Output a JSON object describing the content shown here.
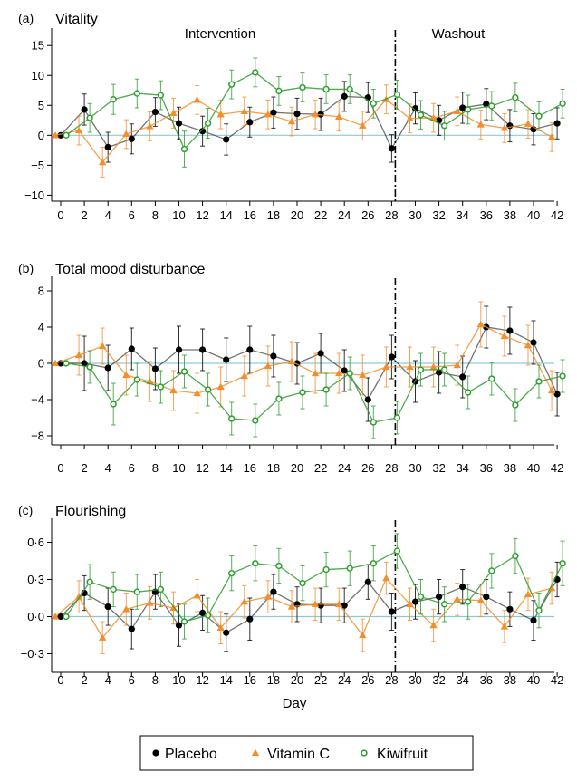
{
  "colors": {
    "placebo": "#000000",
    "vitamin_c": "#F28E2B",
    "kiwifruit": "#2E9E2E",
    "zero_line": "#8EC9D9",
    "divider": "#000000"
  },
  "x_axis": {
    "label": "Day",
    "ticks": [
      0,
      2,
      4,
      6,
      8,
      10,
      12,
      14,
      16,
      18,
      20,
      22,
      24,
      26,
      28,
      30,
      32,
      34,
      36,
      38,
      40,
      42
    ]
  },
  "legend": {
    "placement": "bottom",
    "items": [
      {
        "key": "placebo",
        "label": "Placebo",
        "marker": "filled-circle"
      },
      {
        "key": "vitamin_c",
        "label": "Vitamin C",
        "marker": "filled-triangle"
      },
      {
        "key": "kiwifruit",
        "label": "Kiwifruit",
        "marker": "hollow-circle"
      }
    ]
  },
  "chart_data": [
    {
      "type": "line",
      "panel": "(a)",
      "title": "Vitality",
      "phase_labels": [
        "Intervention",
        "Washout"
      ],
      "ylim": [
        -11,
        17
      ],
      "yticks": [
        -10,
        -5,
        0,
        5,
        10,
        15
      ],
      "ytick_labels": [
        "−10",
        "−5",
        "0",
        "5",
        "10",
        "15"
      ],
      "divider_day": 28,
      "series": [
        {
          "name": "Placebo",
          "key": "placebo",
          "x": [
            0,
            2,
            4,
            6,
            8,
            10,
            12,
            14,
            16,
            18,
            20,
            22,
            24,
            26,
            28,
            30,
            32,
            34,
            36,
            38,
            40,
            42
          ],
          "y": [
            0,
            4.3,
            -2,
            -0.6,
            3.9,
            2,
            0.7,
            -0.7,
            2.2,
            3.8,
            3.6,
            3.5,
            6.5,
            6.3,
            -2.2,
            4.5,
            2.5,
            4.6,
            5.2,
            1.6,
            1,
            2
          ],
          "err": [
            0,
            2.6,
            2.5,
            2.5,
            2.4,
            2.7,
            2.5,
            2.6,
            2.5,
            2.6,
            2.6,
            2.7,
            2.5,
            2.5,
            2.3,
            2.6,
            2.5,
            2.6,
            2.6,
            2.7,
            2.6,
            2.6
          ]
        },
        {
          "name": "Vitamin C",
          "key": "vitamin_c",
          "x": [
            0,
            2,
            4,
            6,
            8,
            10,
            12,
            14,
            16,
            18,
            20,
            22,
            24,
            26,
            28,
            30,
            32,
            34,
            36,
            38,
            40,
            42
          ],
          "y": [
            0,
            0.8,
            -4.5,
            0.2,
            1.5,
            3.7,
            5.9,
            3.5,
            4,
            3.5,
            2.3,
            3.5,
            3.1,
            1.6,
            6,
            2.8,
            2.9,
            4,
            1.8,
            1.2,
            1.9,
            -0.3
          ],
          "err": [
            0,
            2.4,
            2.5,
            2.4,
            2.4,
            2.5,
            2.4,
            2.4,
            2.4,
            2.4,
            2.4,
            2.4,
            2.4,
            2.4,
            2.4,
            2.4,
            2.4,
            2.4,
            2.4,
            2.4,
            2.4,
            2.4
          ]
        },
        {
          "name": "Kiwifruit",
          "key": "kiwifruit",
          "x": [
            0,
            2,
            4,
            6,
            8,
            10,
            12,
            14,
            16,
            18,
            20,
            22,
            24,
            26,
            28,
            30,
            32,
            34,
            36,
            38,
            40,
            42
          ],
          "y": [
            0,
            2.9,
            6,
            7,
            6.7,
            -2.3,
            2,
            8.5,
            10.5,
            7.4,
            8,
            7.7,
            7.7,
            5.3,
            6.8,
            3.4,
            1.6,
            4.3,
            4.9,
            6.3,
            3.2,
            5.3
          ],
          "err": [
            0,
            2.4,
            2.5,
            2.4,
            2.4,
            3,
            2.5,
            2.4,
            2.4,
            2.4,
            2.4,
            2.4,
            2.4,
            2.4,
            2.4,
            2.4,
            2.4,
            2.4,
            2.4,
            2.4,
            2.4,
            2.4
          ]
        }
      ]
    },
    {
      "type": "line",
      "panel": "(b)",
      "title": "Total mood disturbance",
      "ylim": [
        -9,
        9
      ],
      "yticks": [
        -8,
        -4,
        0,
        4,
        8
      ],
      "ytick_labels": [
        "−8",
        "−4",
        "0",
        "4",
        "8"
      ],
      "divider_day": 28,
      "series": [
        {
          "name": "Placebo",
          "key": "placebo",
          "x": [
            0,
            2,
            4,
            6,
            8,
            10,
            12,
            14,
            16,
            18,
            20,
            22,
            24,
            26,
            28,
            30,
            32,
            34,
            36,
            38,
            40,
            42
          ],
          "y": [
            0,
            0,
            -0.5,
            1.6,
            -0.6,
            1.5,
            1.5,
            0.4,
            1.5,
            0.8,
            0,
            1.1,
            -0.8,
            -4,
            0.7,
            -2,
            -1,
            -1.5,
            4,
            3.6,
            2.3,
            -3.4
          ],
          "err": [
            0,
            3,
            2.5,
            2.3,
            2.3,
            2.6,
            2.3,
            2.4,
            2.6,
            2.3,
            2.3,
            2.2,
            2.3,
            2.4,
            2.4,
            2.3,
            2.3,
            2.3,
            2.3,
            2.6,
            2.4,
            2.4
          ]
        },
        {
          "name": "Vitamin C",
          "key": "vitamin_c",
          "x": [
            0,
            2,
            4,
            6,
            8,
            10,
            12,
            14,
            16,
            18,
            20,
            22,
            24,
            26,
            28,
            30,
            32,
            34,
            36,
            38,
            40,
            42
          ],
          "y": [
            0,
            0.9,
            1.9,
            -1.3,
            -2,
            -3,
            -3.3,
            -2.6,
            -1.4,
            -0.3,
            0.2,
            -1.1,
            -1.1,
            -1.3,
            -0.4,
            -0.4,
            -0.4,
            -0.2,
            4.3,
            3,
            2,
            -3
          ],
          "err": [
            0,
            2.2,
            2,
            2.2,
            2.2,
            2.2,
            2.2,
            2.2,
            2.2,
            2.2,
            2.2,
            2.2,
            2.2,
            2.2,
            2.2,
            2.2,
            2.2,
            2.2,
            2.5,
            2.2,
            2.2,
            2.2
          ]
        },
        {
          "name": "Kiwifruit",
          "key": "kiwifruit",
          "x": [
            0,
            2,
            4,
            6,
            8,
            10,
            12,
            14,
            16,
            18,
            20,
            22,
            24,
            26,
            28,
            30,
            32,
            34,
            36,
            38,
            40,
            42
          ],
          "y": [
            0,
            -0.4,
            -4.5,
            -1.8,
            -2.6,
            -0.9,
            -2.9,
            -6.1,
            -6.3,
            -3.9,
            -3.2,
            -2.9,
            -1.1,
            -6.5,
            -6,
            -0.7,
            -0.7,
            -3.2,
            -1.7,
            -4.6,
            -2,
            -1.4
          ],
          "err": [
            0,
            1.8,
            2.3,
            1.8,
            1.8,
            1.8,
            1.8,
            1.8,
            1.8,
            1.8,
            1.8,
            1.8,
            1.8,
            1.8,
            1.8,
            1.8,
            1.8,
            1.8,
            1.8,
            1.8,
            1.8,
            1.8
          ]
        }
      ]
    },
    {
      "type": "line",
      "panel": "(c)",
      "title": "Flourishing",
      "ylim": [
        -0.45,
        0.75
      ],
      "yticks": [
        -0.3,
        0,
        0.3,
        0.6
      ],
      "ytick_labels": [
        "−0·3",
        "0·0",
        "0·3",
        "0·6"
      ],
      "divider_day": 28,
      "series": [
        {
          "name": "Placebo",
          "key": "placebo",
          "x": [
            0,
            2,
            4,
            6,
            8,
            10,
            12,
            14,
            16,
            18,
            20,
            22,
            24,
            26,
            28,
            30,
            32,
            34,
            36,
            38,
            40,
            42
          ],
          "y": [
            0,
            0.19,
            0.08,
            -0.1,
            0.2,
            -0.07,
            0.03,
            -0.13,
            -0.02,
            0.2,
            0.1,
            0.09,
            0.09,
            0.28,
            0.04,
            0.12,
            0.16,
            0.24,
            0.16,
            0.06,
            -0.03,
            0.3
          ],
          "err": [
            0,
            0.14,
            0.15,
            0.16,
            0.14,
            0.17,
            0.14,
            0.15,
            0.17,
            0.14,
            0.14,
            0.14,
            0.14,
            0.14,
            0.15,
            0.14,
            0.14,
            0.14,
            0.14,
            0.14,
            0.16,
            0.14
          ]
        },
        {
          "name": "Vitamin C",
          "key": "vitamin_c",
          "x": [
            0,
            2,
            4,
            6,
            8,
            10,
            12,
            14,
            16,
            18,
            20,
            22,
            24,
            26,
            28,
            30,
            32,
            34,
            36,
            38,
            40,
            42
          ],
          "y": [
            0,
            0.16,
            -0.17,
            0.06,
            0.11,
            0.07,
            0.17,
            -0.09,
            0.12,
            0.16,
            0.08,
            0.1,
            0.1,
            -0.15,
            0.31,
            0.1,
            -0.07,
            0.14,
            0.13,
            -0.08,
            0.18,
            0.23
          ],
          "err": [
            0,
            0.13,
            0.13,
            0.13,
            0.13,
            0.13,
            0.13,
            0.13,
            0.13,
            0.13,
            0.13,
            0.13,
            0.13,
            0.13,
            0.13,
            0.13,
            0.13,
            0.13,
            0.13,
            0.13,
            0.13,
            0.13
          ]
        },
        {
          "name": "Kiwifruit",
          "key": "kiwifruit",
          "x": [
            0,
            2,
            4,
            6,
            8,
            10,
            12,
            14,
            16,
            18,
            20,
            22,
            24,
            26,
            28,
            30,
            32,
            34,
            36,
            38,
            40,
            42
          ],
          "y": [
            0,
            0.28,
            0.22,
            0.2,
            0.22,
            -0.04,
            0.01,
            0.35,
            0.43,
            0.41,
            0.27,
            0.38,
            0.39,
            0.43,
            0.53,
            0.16,
            0.1,
            0.12,
            0.37,
            0.49,
            0.05,
            0.43
          ],
          "err": [
            0,
            0.14,
            0.14,
            0.14,
            0.14,
            0.14,
            0.14,
            0.14,
            0.14,
            0.14,
            0.14,
            0.14,
            0.14,
            0.14,
            0.14,
            0.14,
            0.14,
            0.14,
            0.14,
            0.14,
            0.14,
            0.18
          ]
        }
      ]
    }
  ]
}
